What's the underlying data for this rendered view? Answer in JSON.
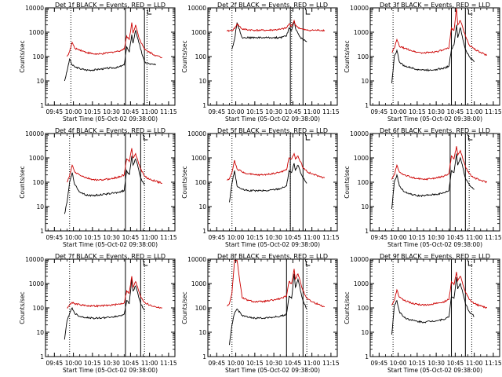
{
  "figure": {
    "background": "#ffffff",
    "colors": {
      "events": "#000000",
      "lld": "#cc0000",
      "axes": "#000000"
    }
  },
  "chart_data": [
    {
      "type": "line",
      "title": "Det 1f BLACK = Events, RED = LLD",
      "xlabel": "Start Time (05-Oct-02 09:38:00)",
      "ylabel": "Counts/sec",
      "xticks": [
        "09:45",
        "10:00",
        "10:15",
        "10:30",
        "10:45",
        "11:00",
        "11:15"
      ],
      "yticks": [
        "1",
        "10",
        "100",
        "1000",
        "10000"
      ],
      "x": [
        "09:53",
        "09:55",
        "09:57",
        "09:59",
        "10:01",
        "10:05",
        "10:10",
        "10:15",
        "10:20",
        "10:25",
        "10:30",
        "10:35",
        "10:40",
        "10:42",
        "10:44",
        "10:46",
        "10:47",
        "10:49",
        "10:51",
        "10:53",
        "10:56",
        "11:00",
        "11:05",
        "11:10"
      ],
      "ylim": [
        1,
        10000
      ],
      "yscale": "log",
      "vlines_solid": [
        "10:41",
        "10:56"
      ],
      "vlines_dotted": [
        "09:58",
        "10:58"
      ],
      "series": [
        {
          "name": "BLACK = Events",
          "values": [
            10,
            25,
            80,
            45,
            38,
            32,
            28,
            28,
            30,
            32,
            34,
            36,
            45,
            250,
            150,
            800,
            350,
            1200,
            500,
            200,
            60,
            50,
            45,
            null
          ]
        },
        {
          "name": "RED = LLD",
          "values": [
            null,
            100,
            160,
            380,
            220,
            190,
            150,
            130,
            125,
            135,
            150,
            165,
            200,
            700,
            500,
            2500,
            900,
            2000,
            800,
            400,
            200,
            150,
            110,
            90
          ]
        }
      ]
    },
    {
      "type": "line",
      "title": "Det 2f BLACK = Events, RED = LLD",
      "xlabel": "Start Time (05-Oct-02 09:38:00)",
      "ylabel": "Counts/sec",
      "xticks": [
        "09:45",
        "10:00",
        "10:15",
        "10:30",
        "10:45",
        "11:00",
        "11:15"
      ],
      "yticks": [
        "1",
        "10",
        "100",
        "1000",
        "10000"
      ],
      "x": [
        "09:53",
        "09:55",
        "09:57",
        "09:59",
        "10:01",
        "10:05",
        "10:10",
        "10:15",
        "10:20",
        "10:25",
        "10:30",
        "10:35",
        "10:40",
        "10:42",
        "10:44",
        "10:46",
        "10:47",
        "10:49",
        "10:51",
        "10:53",
        "10:56",
        "11:00",
        "11:05",
        "11:10"
      ],
      "ylim": [
        1,
        10000
      ],
      "yscale": "log",
      "vlines_solid": [
        "10:43",
        "10:53"
      ],
      "vlines_dotted": [
        "09:57",
        "10:44"
      ],
      "series": [
        {
          "name": "BLACK = Events",
          "values": [
            null,
            null,
            200,
            500,
            2500,
            600,
            600,
            600,
            600,
            600,
            600,
            600,
            700,
            1500,
            1200,
            3000,
            1500,
            900,
            600,
            500,
            400,
            null,
            null,
            null
          ]
        },
        {
          "name": "RED = LLD",
          "values": [
            1100,
            1150,
            1200,
            1400,
            2200,
            1350,
            1250,
            1200,
            1200,
            1200,
            1250,
            1300,
            1500,
            2200,
            1800,
            3000,
            1900,
            1600,
            1400,
            1300,
            1200,
            1200,
            1200,
            1200
          ]
        }
      ]
    },
    {
      "type": "line",
      "title": "Det 3f BLACK = Events, RED = LLD",
      "xlabel": "Start Time (05-Oct-02 09:38:00)",
      "ylabel": "Counts/sec",
      "xticks": [
        "09:45",
        "10:00",
        "10:15",
        "10:30",
        "10:45",
        "11:00",
        "11:15"
      ],
      "yticks": [
        "1",
        "10",
        "100",
        "1000",
        "10000"
      ],
      "x": [
        "09:53",
        "09:55",
        "09:57",
        "09:59",
        "10:01",
        "10:05",
        "10:10",
        "10:15",
        "10:20",
        "10:25",
        "10:30",
        "10:35",
        "10:40",
        "10:42",
        "10:44",
        "10:46",
        "10:47",
        "10:49",
        "10:51",
        "10:53",
        "10:56",
        "11:00",
        "11:05",
        "11:10"
      ],
      "ylim": [
        1,
        10000
      ],
      "yscale": "log",
      "vlines_solid": [
        "10:42",
        "10:53"
      ],
      "vlines_dotted": [
        "09:56",
        "10:58"
      ],
      "series": [
        {
          "name": "BLACK = Events",
          "values": [
            null,
            8,
            100,
            180,
            60,
            40,
            35,
            30,
            28,
            28,
            30,
            32,
            40,
            200,
            300,
            2000,
            600,
            1500,
            500,
            200,
            100,
            60,
            null,
            null
          ]
        },
        {
          "name": "RED = LLD",
          "values": [
            null,
            150,
            220,
            500,
            260,
            220,
            180,
            150,
            140,
            150,
            160,
            180,
            220,
            1500,
            1200,
            10000,
            2000,
            3000,
            1500,
            700,
            300,
            200,
            150,
            110
          ]
        }
      ]
    },
    {
      "type": "line",
      "title": "Det 4f BLACK = Events, RED = LLD",
      "xlabel": "Start Time (05-Oct-02 09:38:00)",
      "ylabel": "Counts/sec",
      "xticks": [
        "09:45",
        "10:00",
        "10:15",
        "10:30",
        "10:45",
        "11:00",
        "11:15"
      ],
      "yticks": [
        "1",
        "10",
        "100",
        "1000",
        "10000"
      ],
      "x": [
        "09:53",
        "09:55",
        "09:57",
        "09:59",
        "10:01",
        "10:05",
        "10:10",
        "10:15",
        "10:20",
        "10:25",
        "10:30",
        "10:35",
        "10:40",
        "10:42",
        "10:44",
        "10:46",
        "10:47",
        "10:49",
        "10:51",
        "10:53",
        "10:56",
        "11:00",
        "11:05",
        "11:10"
      ],
      "ylim": [
        1,
        10000
      ],
      "yscale": "log",
      "vlines_solid": [
        "10:41",
        "10:53"
      ],
      "vlines_dotted": [
        "09:57",
        "10:56"
      ],
      "series": [
        {
          "name": "BLACK = Events",
          "values": [
            5,
            15,
            100,
            250,
            80,
            40,
            30,
            28,
            30,
            32,
            35,
            38,
            45,
            300,
            200,
            1200,
            500,
            900,
            400,
            150,
            80,
            null,
            null,
            null
          ]
        },
        {
          "name": "RED = LLD",
          "values": [
            null,
            100,
            180,
            500,
            260,
            200,
            150,
            130,
            120,
            130,
            140,
            160,
            200,
            900,
            700,
            2500,
            1000,
            1500,
            700,
            350,
            180,
            130,
            110,
            90
          ]
        }
      ]
    },
    {
      "type": "line",
      "title": "Det 5f BLACK = Events, RED = LLD",
      "xlabel": "Start Time (05-Oct-02 09:38:00)",
      "ylabel": "Counts/sec",
      "xticks": [
        "09:45",
        "10:00",
        "10:15",
        "10:30",
        "10:45",
        "11:00",
        "11:15"
      ],
      "yticks": [
        "1",
        "10",
        "100",
        "1000",
        "10000"
      ],
      "x": [
        "09:53",
        "09:55",
        "09:57",
        "09:59",
        "10:01",
        "10:05",
        "10:10",
        "10:15",
        "10:20",
        "10:25",
        "10:30",
        "10:35",
        "10:40",
        "10:42",
        "10:44",
        "10:46",
        "10:47",
        "10:49",
        "10:51",
        "10:53",
        "10:56",
        "11:00",
        "11:05",
        "11:10"
      ],
      "ylim": [
        1,
        10000
      ],
      "yscale": "log",
      "vlines_solid": [
        "10:43",
        "10:53"
      ],
      "vlines_dotted": [
        "09:57",
        "10:43"
      ],
      "series": [
        {
          "name": "BLACK = Events",
          "values": [
            null,
            15,
            90,
            300,
            70,
            50,
            45,
            45,
            45,
            45,
            50,
            55,
            70,
            300,
            250,
            600,
            300,
            500,
            250,
            150,
            90,
            null,
            null,
            null
          ]
        },
        {
          "name": "RED = LLD",
          "values": [
            120,
            140,
            250,
            800,
            350,
            260,
            220,
            200,
            200,
            210,
            230,
            260,
            320,
            1000,
            900,
            1500,
            900,
            1200,
            700,
            400,
            280,
            220,
            180,
            150
          ]
        }
      ]
    },
    {
      "type": "line",
      "title": "Det 6f BLACK = Events, RED = LLD",
      "xlabel": "Start Time (05-Oct-02 09:38:00)",
      "ylabel": "Counts/sec",
      "xticks": [
        "09:45",
        "10:00",
        "10:15",
        "10:30",
        "10:45",
        "11:00",
        "11:15"
      ],
      "yticks": [
        "1",
        "10",
        "100",
        "1000",
        "10000"
      ],
      "x": [
        "09:53",
        "09:55",
        "09:57",
        "09:59",
        "10:01",
        "10:05",
        "10:10",
        "10:15",
        "10:20",
        "10:25",
        "10:30",
        "10:35",
        "10:40",
        "10:42",
        "10:44",
        "10:46",
        "10:47",
        "10:49",
        "10:51",
        "10:53",
        "10:56",
        "11:00",
        "11:05",
        "11:10"
      ],
      "ylim": [
        1,
        10000
      ],
      "yscale": "log",
      "vlines_solid": [
        "10:41",
        "10:53"
      ],
      "vlines_dotted": [
        "09:56",
        "10:56"
      ],
      "series": [
        {
          "name": "BLACK = Events",
          "values": [
            null,
            8,
            100,
            200,
            70,
            40,
            32,
            28,
            28,
            30,
            32,
            35,
            45,
            300,
            250,
            1500,
            500,
            1000,
            400,
            150,
            80,
            50,
            null,
            null
          ]
        },
        {
          "name": "RED = LLD",
          "values": [
            null,
            130,
            200,
            500,
            260,
            200,
            160,
            140,
            130,
            140,
            150,
            170,
            220,
            1200,
            900,
            3000,
            1300,
            2000,
            900,
            450,
            220,
            150,
            120,
            100
          ]
        }
      ]
    },
    {
      "type": "line",
      "title": "Det 7f BLACK = Events, RED = LLD",
      "xlabel": "Start Time (05-Oct-02 09:38:00)",
      "ylabel": "Counts/sec",
      "xticks": [
        "09:45",
        "10:00",
        "10:15",
        "10:30",
        "10:45",
        "11:00",
        "11:15"
      ],
      "yticks": [
        "1",
        "10",
        "100",
        "1000",
        "10000"
      ],
      "x": [
        "09:53",
        "09:55",
        "09:57",
        "09:59",
        "10:01",
        "10:05",
        "10:10",
        "10:15",
        "10:20",
        "10:25",
        "10:30",
        "10:35",
        "10:40",
        "10:42",
        "10:44",
        "10:46",
        "10:47",
        "10:49",
        "10:51",
        "10:53",
        "10:56",
        "11:00",
        "11:05",
        "11:10"
      ],
      "ylim": [
        1,
        10000
      ],
      "yscale": "log",
      "vlines_solid": [
        "10:41",
        "10:53"
      ],
      "vlines_dotted": [
        "09:57",
        "10:56"
      ],
      "series": [
        {
          "name": "BLACK = Events",
          "values": [
            5,
            30,
            60,
            100,
            60,
            45,
            40,
            38,
            38,
            40,
            42,
            45,
            55,
            200,
            150,
            1500,
            500,
            800,
            350,
            150,
            80,
            null,
            null,
            null
          ]
        },
        {
          "name": "RED = LLD",
          "values": [
            null,
            100,
            130,
            170,
            150,
            135,
            125,
            120,
            120,
            125,
            130,
            140,
            160,
            500,
            400,
            2000,
            700,
            1200,
            600,
            300,
            170,
            130,
            110,
            100
          ]
        }
      ]
    },
    {
      "type": "line",
      "title": "Det 8f BLACK = Events, RED = LLD",
      "xlabel": "Start Time (05-Oct-02 09:38:00)",
      "ylabel": "Counts/sec",
      "xticks": [
        "09:45",
        "10:00",
        "10:15",
        "10:30",
        "10:45",
        "11:00",
        "11:15"
      ],
      "yticks": [
        "1",
        "10",
        "100",
        "1000",
        "10000"
      ],
      "x": [
        "09:53",
        "09:55",
        "09:57",
        "09:59",
        "10:01",
        "10:05",
        "10:10",
        "10:15",
        "10:20",
        "10:25",
        "10:30",
        "10:35",
        "10:40",
        "10:42",
        "10:44",
        "10:46",
        "10:47",
        "10:49",
        "10:51",
        "10:53",
        "10:56",
        "11:00",
        "11:05",
        "11:10"
      ],
      "ylim": [
        1,
        10000
      ],
      "yscale": "log",
      "vlines_solid": [
        "10:40",
        "10:53"
      ],
      "vlines_dotted": [
        "09:57",
        "10:56"
      ],
      "series": [
        {
          "name": "BLACK = Events",
          "values": [
            null,
            3,
            20,
            60,
            90,
            50,
            40,
            38,
            38,
            40,
            42,
            45,
            55,
            300,
            250,
            2500,
            700,
            1500,
            500,
            200,
            90,
            null,
            null,
            null
          ]
        },
        {
          "name": "RED = LLD",
          "values": [
            120,
            150,
            400,
            9000,
            9000,
            260,
            200,
            180,
            180,
            190,
            210,
            240,
            300,
            1200,
            1000,
            4000,
            1500,
            2500,
            1100,
            500,
            250,
            180,
            140,
            110
          ]
        }
      ]
    },
    {
      "type": "line",
      "title": "Det 9f BLACK = Events, RED = LLD",
      "xlabel": "Start Time (05-Oct-02 09:38:00)",
      "ylabel": "Counts/sec",
      "xticks": [
        "09:45",
        "10:00",
        "10:15",
        "10:30",
        "10:45",
        "11:00",
        "11:15"
      ],
      "yticks": [
        "1",
        "10",
        "100",
        "1000",
        "10000"
      ],
      "x": [
        "09:53",
        "09:55",
        "09:57",
        "09:59",
        "10:01",
        "10:05",
        "10:10",
        "10:15",
        "10:20",
        "10:25",
        "10:30",
        "10:35",
        "10:40",
        "10:42",
        "10:44",
        "10:46",
        "10:47",
        "10:49",
        "10:51",
        "10:53",
        "10:56",
        "11:00",
        "11:05",
        "11:10"
      ],
      "ylim": [
        1,
        10000
      ],
      "yscale": "log",
      "vlines_solid": [
        "10:42",
        "10:53"
      ],
      "vlines_dotted": [
        "09:56",
        "10:58"
      ],
      "series": [
        {
          "name": "BLACK = Events",
          "values": [
            null,
            8,
            120,
            200,
            70,
            40,
            32,
            28,
            26,
            28,
            30,
            33,
            42,
            300,
            250,
            1800,
            600,
            1000,
            400,
            150,
            70,
            45,
            null,
            null
          ]
        },
        {
          "name": "RED = LLD",
          "values": [
            null,
            130,
            200,
            550,
            270,
            200,
            160,
            140,
            130,
            140,
            150,
            170,
            220,
            1200,
            900,
            3000,
            1300,
            2000,
            900,
            450,
            220,
            150,
            120,
            100
          ]
        }
      ]
    }
  ]
}
